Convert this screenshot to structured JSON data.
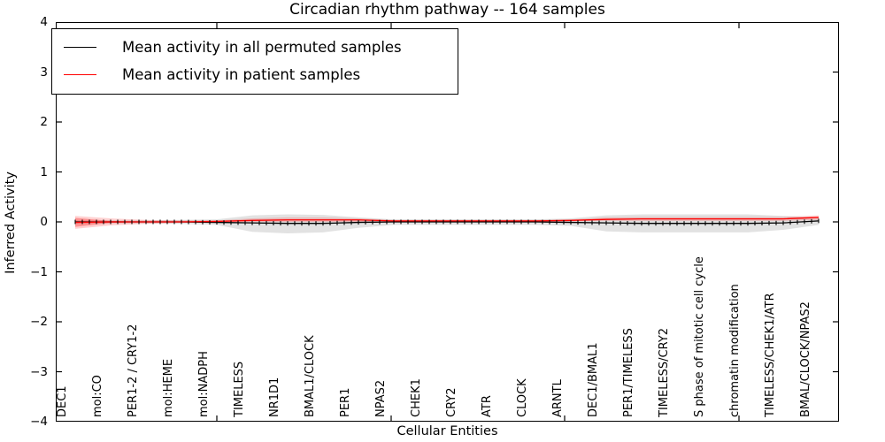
{
  "title": "Circadian rhythm pathway -- 164 samples",
  "legend": {
    "items": [
      {
        "label": "Mean activity in all permuted samples",
        "color": "#000000"
      },
      {
        "label": "Mean activity in patient samples",
        "color": "#ff0000"
      }
    ]
  },
  "chart_data": {
    "type": "line",
    "title": "Circadian rhythm pathway -- 164 samples",
    "xlabel": "Cellular Entities",
    "ylabel": "Inferred Activity",
    "ylim": [
      -4,
      4
    ],
    "yticks": [
      4,
      3,
      2,
      1,
      0,
      -1,
      -2,
      -3,
      -4
    ],
    "ytick_labels": [
      "4",
      "3",
      "2",
      "1",
      "0",
      "−1",
      "−2",
      "−3",
      "−4"
    ],
    "grid": false,
    "legend_position": "upper left",
    "categories": [
      "DEC1",
      "mol:CO",
      "PER1-2 / CRY1-2",
      "mol:HEME",
      "mol:NADPH",
      "TIMELESS",
      "NR1D1",
      "BMAL1/CLOCK",
      "PER1",
      "NPAS2",
      "CHEK1",
      "CRY2",
      "ATR",
      "CLOCK",
      "ARNTL",
      "DEC1/BMAL1",
      "PER1/TIMELESS",
      "TIMELESS/CRY2",
      "S phase of mitotic cell cycle",
      "chromatin modification",
      "TIMELESS/CHEK1/ATR",
      "BMAL/CLOCK/NPAS2"
    ],
    "series": [
      {
        "name": "Mean activity in all permuted samples",
        "color": "#000000",
        "marker": "vertical-dash",
        "values": [
          0,
          0,
          0,
          0,
          -0.01,
          -0.02,
          -0.03,
          -0.03,
          -0.01,
          0,
          0,
          0,
          0,
          0,
          -0.01,
          -0.02,
          -0.03,
          -0.03,
          -0.03,
          -0.03,
          -0.02,
          0.02
        ],
        "band_low": [
          -0.03,
          -0.03,
          -0.03,
          -0.04,
          -0.06,
          -0.2,
          -0.23,
          -0.21,
          -0.12,
          -0.06,
          -0.06,
          -0.06,
          -0.06,
          -0.06,
          -0.08,
          -0.19,
          -0.21,
          -0.21,
          -0.21,
          -0.21,
          -0.16,
          -0.06
        ],
        "band_high": [
          0.03,
          0.03,
          0.03,
          0.04,
          0.05,
          0.13,
          0.15,
          0.14,
          0.09,
          0.05,
          0.05,
          0.05,
          0.05,
          0.05,
          0.07,
          0.13,
          0.15,
          0.15,
          0.15,
          0.15,
          0.12,
          0.09
        ],
        "band_color": "rgba(110,110,110,0.20)"
      },
      {
        "name": "Mean activity in patient samples",
        "color": "#ff0000",
        "marker": "none",
        "values": [
          -0.01,
          0,
          0,
          0,
          0.01,
          0.03,
          0.04,
          0.04,
          0.04,
          0.02,
          0.02,
          0.02,
          0.02,
          0.02,
          0.03,
          0.05,
          0.06,
          0.06,
          0.06,
          0.06,
          0.06,
          0.09
        ],
        "band_low": [
          -0.14,
          -0.07,
          -0.04,
          -0.02,
          -0.01,
          0,
          0,
          0,
          0,
          0,
          0,
          0,
          0,
          0,
          0.01,
          0.02,
          0.02,
          0.02,
          0.02,
          0.02,
          0.02,
          0.04
        ],
        "band_high": [
          0.12,
          0.07,
          0.04,
          0.03,
          0.03,
          0.07,
          0.09,
          0.09,
          0.07,
          0.04,
          0.04,
          0.04,
          0.04,
          0.04,
          0.05,
          0.09,
          0.1,
          0.1,
          0.1,
          0.1,
          0.1,
          0.13
        ],
        "band_color": "rgba(255,0,0,0.18)",
        "inner_band": {
          "x": [
            0,
            1,
            2
          ],
          "high": [
            0.08,
            0.02,
            0.0
          ],
          "low": [
            -0.1,
            -0.02,
            0.0
          ],
          "color": "rgba(255,0,0,0.30)"
        }
      }
    ]
  }
}
